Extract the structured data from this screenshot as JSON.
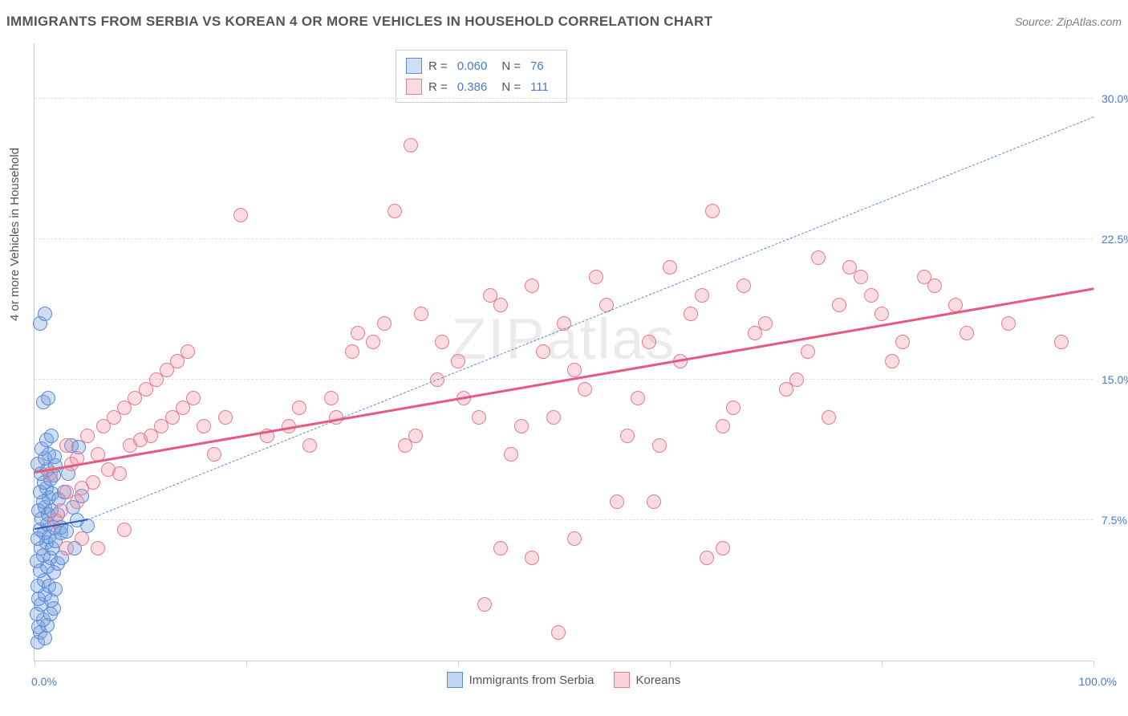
{
  "title": "IMMIGRANTS FROM SERBIA VS KOREAN 4 OR MORE VEHICLES IN HOUSEHOLD CORRELATION CHART",
  "source": "Source: ZipAtlas.com",
  "watermark": "ZIPatlas",
  "y_axis_title": "4 or more Vehicles in Household",
  "chart": {
    "type": "scatter",
    "background_color": "#ffffff",
    "grid_color": "#e0e0e0",
    "border_color": "#cccccc",
    "xlim": [
      0,
      100
    ],
    "ylim": [
      0,
      33
    ],
    "x_ticks": [
      0,
      20,
      40,
      60,
      80,
      100
    ],
    "y_gridlines": [
      7.5,
      15.0,
      22.5,
      30.0
    ],
    "y_tick_labels": [
      "7.5%",
      "15.0%",
      "22.5%",
      "30.0%"
    ],
    "x_min_label": "0.0%",
    "x_max_label": "100.0%",
    "point_radius": 9,
    "series": [
      {
        "name": "Immigrants from Serbia",
        "fill_color": "rgba(120,160,220,0.35)",
        "stroke_color": "#5a8bd8",
        "r_label": "R =",
        "r_value": "0.060",
        "n_label": "N =",
        "n_value": "76",
        "trend": {
          "x1": 0,
          "y1": 7.0,
          "x2": 5,
          "y2": 7.5,
          "color": "#2e5db0",
          "width": 2,
          "dash": false
        },
        "trend_extrap": {
          "x1": 5,
          "y1": 7.5,
          "x2": 100,
          "y2": 29.0,
          "color": "#5a8bd8",
          "width": 1,
          "dash": true
        },
        "points": [
          [
            0.3,
            1.0
          ],
          [
            0.5,
            1.5
          ],
          [
            0.4,
            1.8
          ],
          [
            1.0,
            1.2
          ],
          [
            1.2,
            1.9
          ],
          [
            0.8,
            2.2
          ],
          [
            0.2,
            2.5
          ],
          [
            1.5,
            2.5
          ],
          [
            0.6,
            3.0
          ],
          [
            1.8,
            2.8
          ],
          [
            0.4,
            3.3
          ],
          [
            1.0,
            3.5
          ],
          [
            1.6,
            3.2
          ],
          [
            0.3,
            4.0
          ],
          [
            0.9,
            4.3
          ],
          [
            1.4,
            4.0
          ],
          [
            2.0,
            3.8
          ],
          [
            0.5,
            4.8
          ],
          [
            1.2,
            5.0
          ],
          [
            1.8,
            4.7
          ],
          [
            0.2,
            5.3
          ],
          [
            0.8,
            5.6
          ],
          [
            1.5,
            5.5
          ],
          [
            2.2,
            5.2
          ],
          [
            0.6,
            6.0
          ],
          [
            1.1,
            6.3
          ],
          [
            1.7,
            6.0
          ],
          [
            0.3,
            6.5
          ],
          [
            0.9,
            6.8
          ],
          [
            1.4,
            6.6
          ],
          [
            2.0,
            6.4
          ],
          [
            0.5,
            7.0
          ],
          [
            1.2,
            7.3
          ],
          [
            1.8,
            7.1
          ],
          [
            2.5,
            6.8
          ],
          [
            0.7,
            7.6
          ],
          [
            1.3,
            7.8
          ],
          [
            0.4,
            8.0
          ],
          [
            1.0,
            8.2
          ],
          [
            1.6,
            8.0
          ],
          [
            2.2,
            7.8
          ],
          [
            0.8,
            8.5
          ],
          [
            1.4,
            8.7
          ],
          [
            0.5,
            9.0
          ],
          [
            1.1,
            9.2
          ],
          [
            1.7,
            8.9
          ],
          [
            2.3,
            8.6
          ],
          [
            0.9,
            9.5
          ],
          [
            1.5,
            9.7
          ],
          [
            0.6,
            10.0
          ],
          [
            1.2,
            10.2
          ],
          [
            1.8,
            9.9
          ],
          [
            0.3,
            10.5
          ],
          [
            1.0,
            10.8
          ],
          [
            2.0,
            10.4
          ],
          [
            1.4,
            11.0
          ],
          [
            0.7,
            11.3
          ],
          [
            1.9,
            10.9
          ],
          [
            3.5,
            11.5
          ],
          [
            4.2,
            11.4
          ],
          [
            1.1,
            11.8
          ],
          [
            1.6,
            12.0
          ],
          [
            0.8,
            13.8
          ],
          [
            1.3,
            14.0
          ],
          [
            0.5,
            18.0
          ],
          [
            1.0,
            18.5
          ],
          [
            2.5,
            7.1
          ],
          [
            3.0,
            6.9
          ],
          [
            3.6,
            8.2
          ],
          [
            4.0,
            7.5
          ],
          [
            2.8,
            9.0
          ],
          [
            3.2,
            10.0
          ],
          [
            2.6,
            5.5
          ],
          [
            3.8,
            6.0
          ],
          [
            4.5,
            8.8
          ],
          [
            5.0,
            7.2
          ]
        ]
      },
      {
        "name": "Koreans",
        "fill_color": "rgba(240,140,160,0.30)",
        "stroke_color": "#e77b93",
        "r_label": "R =",
        "r_value": "0.386",
        "n_label": "N =",
        "n_value": "111",
        "trend": {
          "x1": 0,
          "y1": 10.0,
          "x2": 100,
          "y2": 19.8,
          "color": "#e55a7d",
          "width": 3,
          "dash": false
        },
        "points": [
          [
            2.0,
            7.5
          ],
          [
            3.0,
            9.0
          ],
          [
            1.5,
            10.0
          ],
          [
            4.0,
            8.5
          ],
          [
            5.5,
            9.5
          ],
          [
            3.5,
            10.5
          ],
          [
            2.5,
            8.0
          ],
          [
            6.0,
            11.0
          ],
          [
            4.5,
            9.2
          ],
          [
            7.0,
            10.2
          ],
          [
            3.0,
            11.5
          ],
          [
            8.0,
            10.0
          ],
          [
            5.0,
            12.0
          ],
          [
            9.0,
            11.5
          ],
          [
            6.5,
            12.5
          ],
          [
            4.0,
            10.8
          ],
          [
            10.0,
            11.8
          ],
          [
            7.5,
            13.0
          ],
          [
            11.0,
            12.0
          ],
          [
            8.5,
            13.5
          ],
          [
            12.0,
            12.5
          ],
          [
            9.5,
            14.0
          ],
          [
            13.0,
            13.0
          ],
          [
            10.5,
            14.5
          ],
          [
            14.0,
            13.5
          ],
          [
            11.5,
            15.0
          ],
          [
            15.0,
            14.0
          ],
          [
            12.5,
            15.5
          ],
          [
            16.0,
            12.5
          ],
          [
            13.5,
            16.0
          ],
          [
            17.0,
            11.0
          ],
          [
            14.5,
            16.5
          ],
          [
            18.0,
            13.0
          ],
          [
            19.5,
            23.8
          ],
          [
            22.0,
            12.0
          ],
          [
            25.0,
            13.5
          ],
          [
            28.0,
            14.0
          ],
          [
            24.0,
            12.5
          ],
          [
            30.0,
            16.5
          ],
          [
            26.0,
            11.5
          ],
          [
            32.0,
            17.0
          ],
          [
            28.5,
            13.0
          ],
          [
            34.0,
            24.0
          ],
          [
            30.5,
            17.5
          ],
          [
            36.0,
            12.0
          ],
          [
            33.0,
            18.0
          ],
          [
            38.0,
            15.0
          ],
          [
            35.0,
            11.5
          ],
          [
            40.0,
            16.0
          ],
          [
            36.5,
            18.5
          ],
          [
            42.0,
            13.0
          ],
          [
            38.5,
            17.0
          ],
          [
            44.0,
            19.0
          ],
          [
            40.5,
            14.0
          ],
          [
            46.0,
            12.5
          ],
          [
            43.0,
            19.5
          ],
          [
            48.0,
            16.5
          ],
          [
            45.0,
            11.0
          ],
          [
            50.0,
            18.0
          ],
          [
            47.0,
            20.0
          ],
          [
            52.0,
            14.5
          ],
          [
            49.0,
            13.0
          ],
          [
            54.0,
            19.0
          ],
          [
            51.0,
            15.5
          ],
          [
            56.0,
            12.0
          ],
          [
            53.0,
            20.5
          ],
          [
            58.0,
            17.0
          ],
          [
            55.0,
            8.5
          ],
          [
            60.0,
            21.0
          ],
          [
            57.0,
            14.0
          ],
          [
            62.0,
            18.5
          ],
          [
            59.0,
            11.5
          ],
          [
            64.0,
            24.0
          ],
          [
            61.0,
            16.0
          ],
          [
            66.0,
            13.5
          ],
          [
            63.0,
            19.5
          ],
          [
            68.0,
            17.5
          ],
          [
            65.0,
            12.5
          ],
          [
            35.5,
            27.5
          ],
          [
            67.0,
            20.0
          ],
          [
            72.0,
            15.0
          ],
          [
            69.0,
            18.0
          ],
          [
            74.0,
            21.5
          ],
          [
            71.0,
            14.5
          ],
          [
            76.0,
            19.0
          ],
          [
            73.0,
            16.5
          ],
          [
            78.0,
            20.5
          ],
          [
            75.0,
            13.0
          ],
          [
            80.0,
            18.5
          ],
          [
            77.0,
            21.0
          ],
          [
            82.0,
            17.0
          ],
          [
            79.0,
            19.5
          ],
          [
            85.0,
            20.0
          ],
          [
            81.0,
            16.0
          ],
          [
            88.0,
            17.5
          ],
          [
            84.0,
            20.5
          ],
          [
            92.0,
            18.0
          ],
          [
            87.0,
            19.0
          ],
          [
            97.0,
            17.0
          ],
          [
            42.5,
            3.0
          ],
          [
            44.0,
            6.0
          ],
          [
            49.5,
            1.5
          ],
          [
            51.0,
            6.5
          ],
          [
            58.5,
            8.5
          ],
          [
            47.0,
            5.5
          ],
          [
            63.5,
            5.5
          ],
          [
            65.0,
            6.0
          ],
          [
            4.5,
            6.5
          ],
          [
            6.0,
            6.0
          ],
          [
            8.5,
            7.0
          ],
          [
            3.0,
            6.0
          ]
        ]
      }
    ]
  },
  "bottom_legend": [
    {
      "label": "Immigrants from Serbia",
      "fill": "rgba(120,160,220,0.45)",
      "stroke": "#5a8bd8"
    },
    {
      "label": "Koreans",
      "fill": "rgba(240,140,160,0.40)",
      "stroke": "#e77b93"
    }
  ]
}
